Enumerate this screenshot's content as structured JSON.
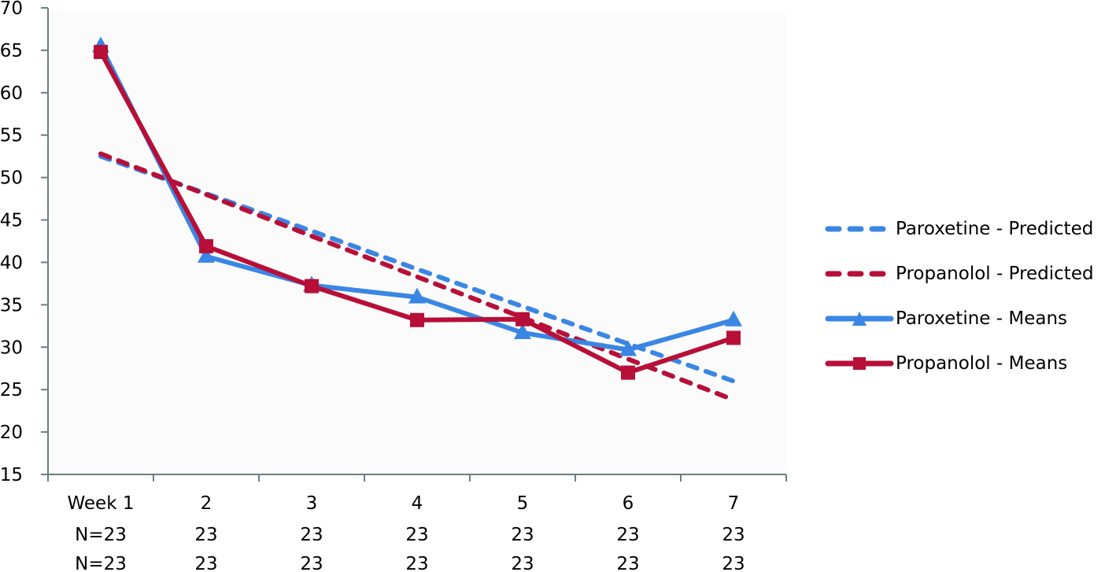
{
  "chart_data": {
    "type": "line",
    "title": "",
    "xlabel": "",
    "ylabel": "",
    "ylim": [
      15,
      70
    ],
    "yticks": [
      70,
      65,
      60,
      55,
      50,
      45,
      40,
      35,
      30,
      25,
      20,
      15
    ],
    "categories": [
      "Week 1",
      "2",
      "3",
      "4",
      "5",
      "6",
      "7"
    ],
    "category_rows": [
      [
        "Week 1",
        "2",
        "3",
        "4",
        "5",
        "6",
        "7"
      ],
      [
        "N=23",
        "23",
        "23",
        "23",
        "23",
        "23",
        "23"
      ],
      [
        " N=23",
        "23",
        "23",
        "23",
        "23",
        "23",
        "23"
      ]
    ],
    "grid": false,
    "legend_position": "right",
    "series": [
      {
        "name": "Paroxetine - Predicted",
        "style": "dashed",
        "marker": "none",
        "color": "#3a86e4",
        "values": [
          52.5,
          48.1,
          43.7,
          39.2,
          34.8,
          30.4,
          26.0
        ]
      },
      {
        "name": "Propanolol - Predicted",
        "style": "dashed",
        "marker": "none",
        "color": "#b70f38",
        "values": [
          52.8,
          48.0,
          43.1,
          38.3,
          33.5,
          28.6,
          23.8
        ]
      },
      {
        "name": "Paroxetine - Means",
        "style": "solid",
        "marker": "triangle",
        "color": "#3a86e4",
        "values": [
          65.5,
          40.7,
          37.3,
          35.9,
          31.7,
          29.7,
          33.2
        ]
      },
      {
        "name": "Propanolol - Means",
        "style": "solid",
        "marker": "square",
        "color": "#b70f38",
        "values": [
          64.8,
          41.9,
          37.2,
          33.2,
          33.3,
          27.0,
          31.1
        ]
      }
    ]
  },
  "legend": {
    "items": [
      {
        "label": "Paroxetine - Predicted"
      },
      {
        "label": "Propanolol - Predicted"
      },
      {
        "label": "Paroxetine - Means"
      },
      {
        "label": "Propanolol - Means"
      }
    ]
  },
  "colors": {
    "paroxetine": "#3a86e4",
    "propanolol": "#b70f38",
    "axis": "#6b7f7f",
    "plot_bg": "#fbfbfb"
  }
}
